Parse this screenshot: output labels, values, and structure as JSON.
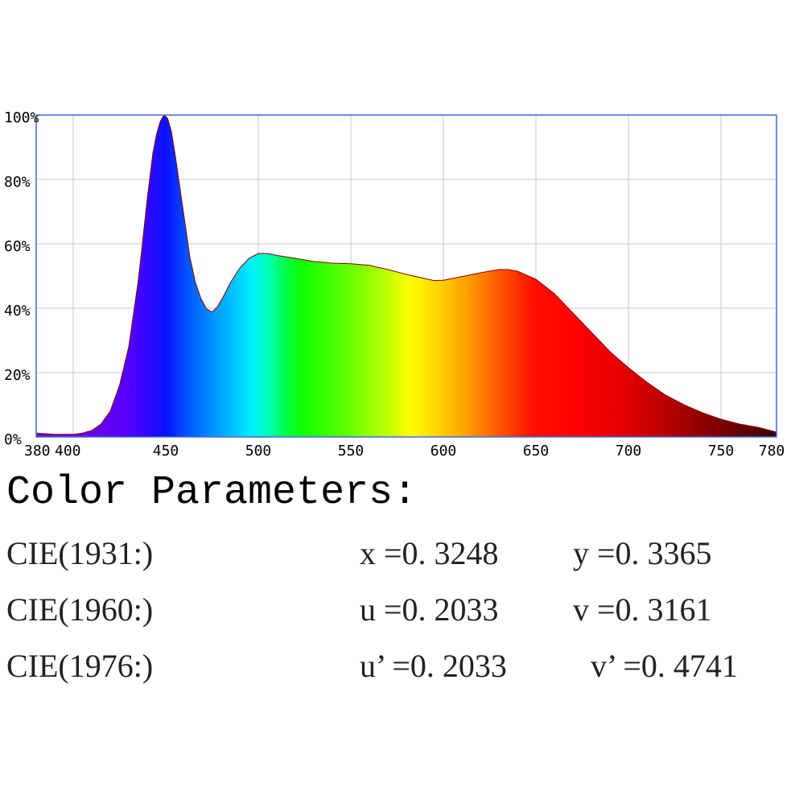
{
  "chart_data": {
    "type": "area",
    "title": "",
    "xlabel": "",
    "ylabel": "",
    "xlim": [
      380,
      780
    ],
    "ylim": [
      0,
      100
    ],
    "x_ticks": [
      "380",
      "400",
      "450",
      "500",
      "550",
      "600",
      "650",
      "700",
      "750",
      "780"
    ],
    "y_ticks": [
      "0%",
      "20%",
      "40%",
      "60%",
      "80%",
      "100%"
    ],
    "grid": true,
    "fill": "visible-spectrum gradient",
    "x": [
      380,
      390,
      400,
      405,
      410,
      415,
      420,
      425,
      430,
      435,
      437,
      440,
      443,
      445,
      447,
      449,
      451,
      453,
      455,
      458,
      460,
      463,
      466,
      469,
      472,
      475,
      478,
      481,
      485,
      490,
      495,
      500,
      505,
      510,
      520,
      530,
      540,
      550,
      560,
      570,
      580,
      590,
      595,
      600,
      610,
      620,
      630,
      635,
      640,
      650,
      660,
      670,
      680,
      690,
      700,
      710,
      720,
      730,
      740,
      750,
      760,
      770,
      780
    ],
    "y": [
      1.2,
      0.8,
      0.8,
      1.2,
      2,
      4,
      8,
      16,
      28,
      48,
      58,
      74,
      88,
      94,
      98,
      100,
      99,
      95,
      88,
      76,
      68,
      56,
      48,
      43,
      39.8,
      38.8,
      40.5,
      43.5,
      48,
      52.5,
      55.5,
      57,
      57,
      56.4,
      55.5,
      54.5,
      54,
      53.8,
      53.3,
      52,
      50.5,
      49.2,
      48.6,
      48.7,
      49.8,
      51,
      52,
      52,
      51.5,
      49,
      44.5,
      38.5,
      32.5,
      26.5,
      21.5,
      17,
      13,
      10,
      7.5,
      5.5,
      4,
      3,
      1.5
    ]
  },
  "params": {
    "title": "Color Parameters:",
    "rows": [
      {
        "label": "CIE(1931:)",
        "k1": "x =0. 3248",
        "k2": "y =0. 3365"
      },
      {
        "label": "CIE(1960:)",
        "k1": "u =0. 2033",
        "k2": "v =0. 3161"
      },
      {
        "label": "CIE(1976:)",
        "k1": "u’ =0. 2033",
        "k2": "v’ =0. 4741"
      }
    ]
  }
}
